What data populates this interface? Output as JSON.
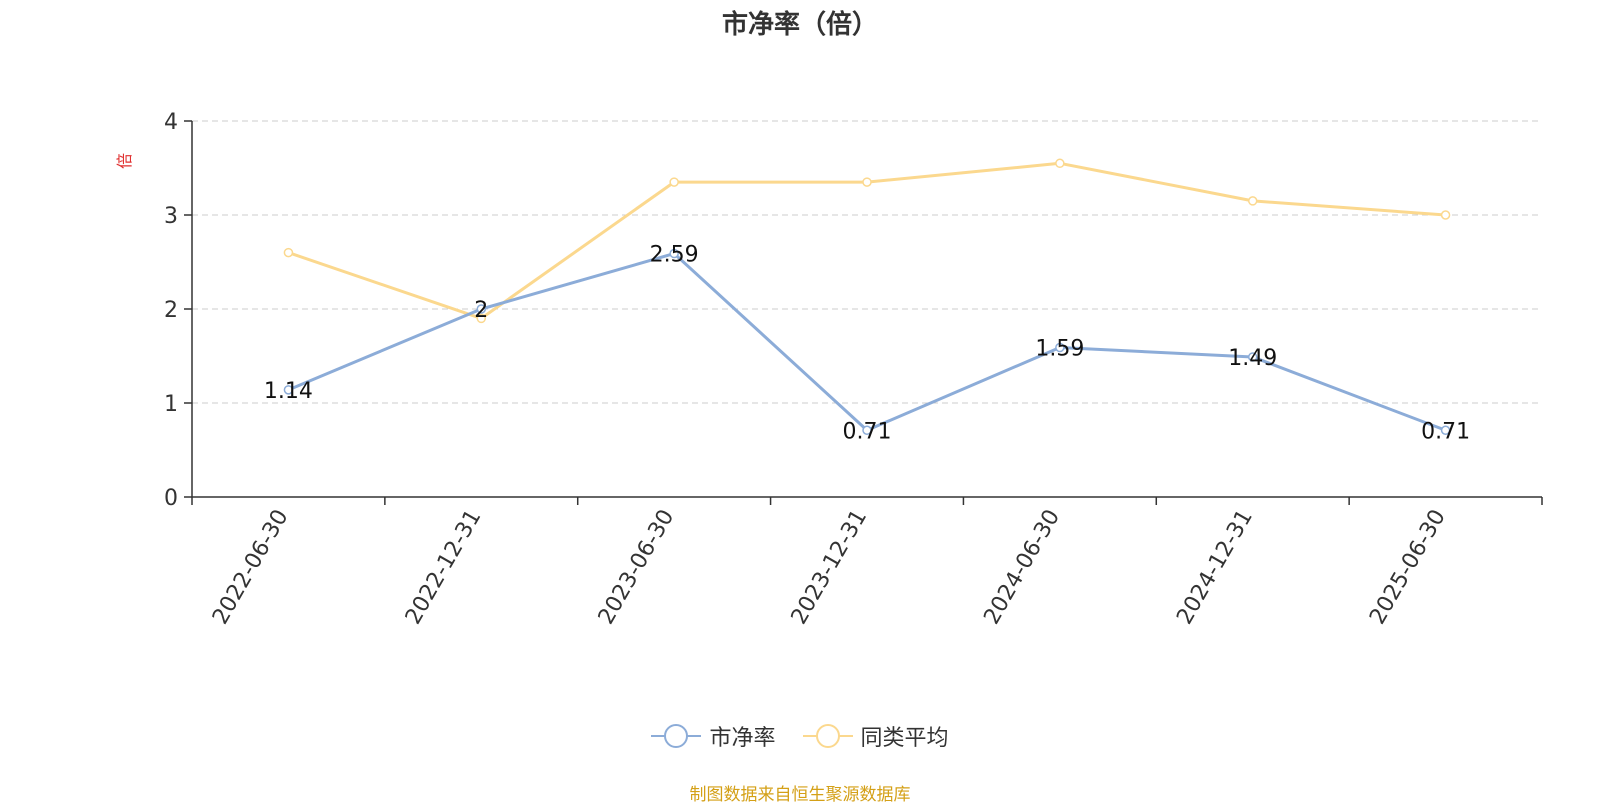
{
  "chart_data": {
    "type": "line",
    "title": "市净率（倍）",
    "ylabel": "倍",
    "ylim": [
      0,
      4
    ],
    "yticks": [
      0,
      1,
      2,
      3,
      4
    ],
    "grid": true,
    "legend_position": "bottom",
    "categories": [
      "2022-06-30",
      "2022-12-31",
      "2023-06-30",
      "2023-12-31",
      "2024-06-30",
      "2024-12-31",
      "2025-06-30"
    ],
    "series": [
      {
        "name": "市净率",
        "color": "#8cacd8",
        "values": [
          1.14,
          2,
          2.59,
          0.71,
          1.59,
          1.49,
          0.71
        ],
        "labels": [
          "1.14",
          "2",
          "2.59",
          "0.71",
          "1.59",
          "1.49",
          "0.71"
        ]
      },
      {
        "name": "同类平均",
        "color": "#fbd88e",
        "values": [
          2.6,
          1.9,
          3.35,
          3.35,
          3.55,
          3.15,
          3.0
        ]
      }
    ]
  },
  "source_note": "制图数据来自恒生聚源数据库"
}
